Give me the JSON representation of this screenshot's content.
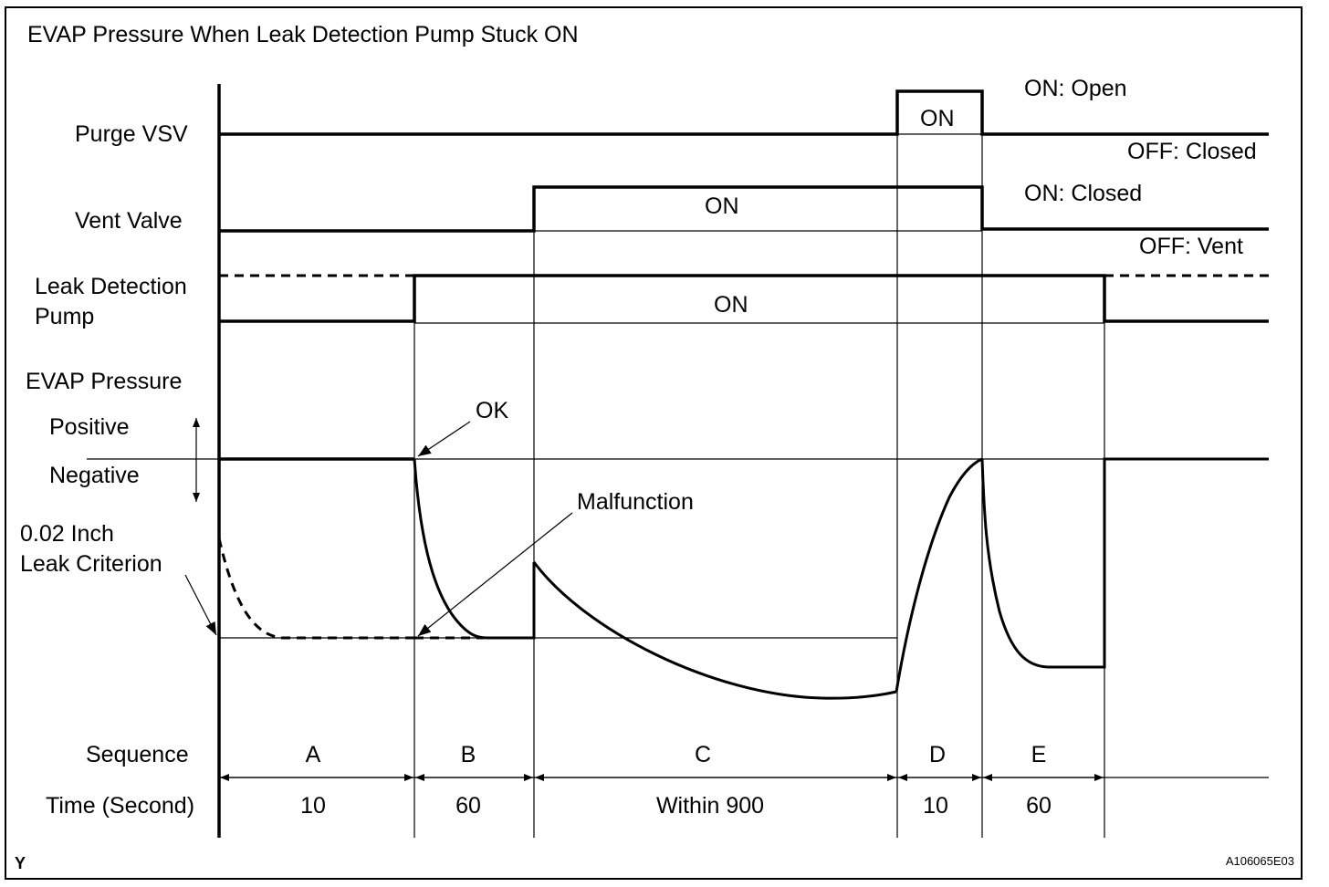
{
  "title": "EVAP Pressure When Leak Detection Pump Stuck ON",
  "signals": {
    "purge_vsv": {
      "label": "Purge VSV",
      "on_state": "ON",
      "on_note": "ON: Open",
      "off_note": "OFF: Closed"
    },
    "vent_valve": {
      "label": "Vent Valve",
      "on_state": "ON",
      "on_note": "ON: Closed",
      "off_note": "OFF: Vent"
    },
    "leak_pump": {
      "label_line1": "Leak Detection",
      "label_line2": "Pump",
      "on_state": "ON"
    }
  },
  "pressure": {
    "label": "EVAP Pressure",
    "positive": "Positive",
    "negative": "Negative",
    "criterion_line1": "0.02 Inch",
    "criterion_line2": "Leak Criterion",
    "ok": "OK",
    "malfunction": "Malfunction"
  },
  "sequence": {
    "label": "Sequence",
    "time_label": "Time (Second)",
    "phases": [
      {
        "name": "A",
        "time": "10"
      },
      {
        "name": "B",
        "time": "60"
      },
      {
        "name": "C",
        "time": "Within 900"
      },
      {
        "name": "D",
        "time": "10"
      },
      {
        "name": "E",
        "time": "60"
      }
    ]
  },
  "footer": {
    "corner_left": "Y",
    "figure_id": "A106065E03"
  }
}
